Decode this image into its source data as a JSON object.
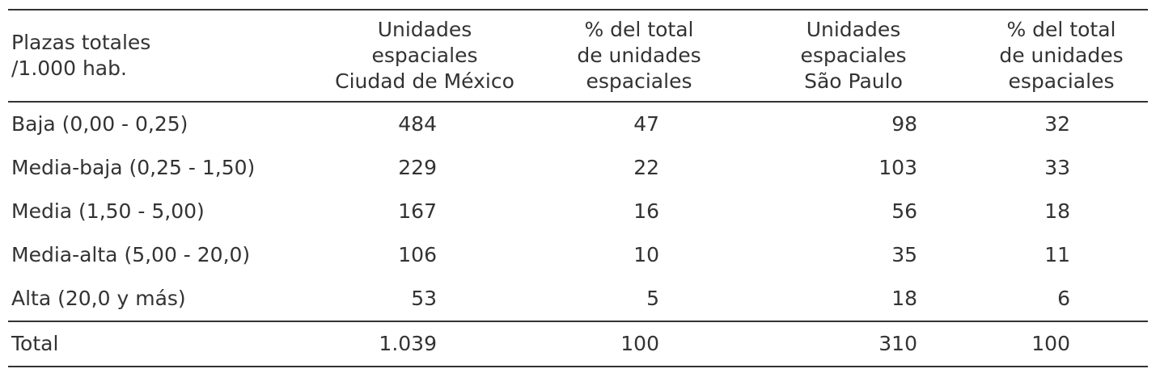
{
  "table": {
    "headers": [
      [
        "Plazas totales",
        "/1.000 hab."
      ],
      [
        "Unidades",
        "espaciales",
        "Ciudad de México"
      ],
      [
        "% del total",
        "de unidades",
        "espaciales"
      ],
      [
        "Unidades",
        "espaciales",
        "São Paulo"
      ],
      [
        "% del total",
        "de unidades",
        "espaciales"
      ]
    ],
    "rows": [
      {
        "label": "Baja (0,00 - 0,25)",
        "cdmx_units": "484",
        "cdmx_pct": "47",
        "sp_units": "98",
        "sp_pct": "32"
      },
      {
        "label": "Media-baja (0,25 - 1,50)",
        "cdmx_units": "229",
        "cdmx_pct": "22",
        "sp_units": "103",
        "sp_pct": "33"
      },
      {
        "label": "Media (1,50 - 5,00)",
        "cdmx_units": "167",
        "cdmx_pct": "16",
        "sp_units": "56",
        "sp_pct": "18"
      },
      {
        "label": "Media-alta (5,00 - 20,0)",
        "cdmx_units": "106",
        "cdmx_pct": "10",
        "sp_units": "35",
        "sp_pct": "11"
      },
      {
        "label": "Alta (20,0 y más)",
        "cdmx_units": "53",
        "cdmx_pct": "5",
        "sp_units": "18",
        "sp_pct": "6"
      }
    ],
    "total": {
      "label": "Total",
      "cdmx_units": "1.039",
      "cdmx_pct": "100",
      "sp_units": "310",
      "sp_pct": "100"
    }
  }
}
